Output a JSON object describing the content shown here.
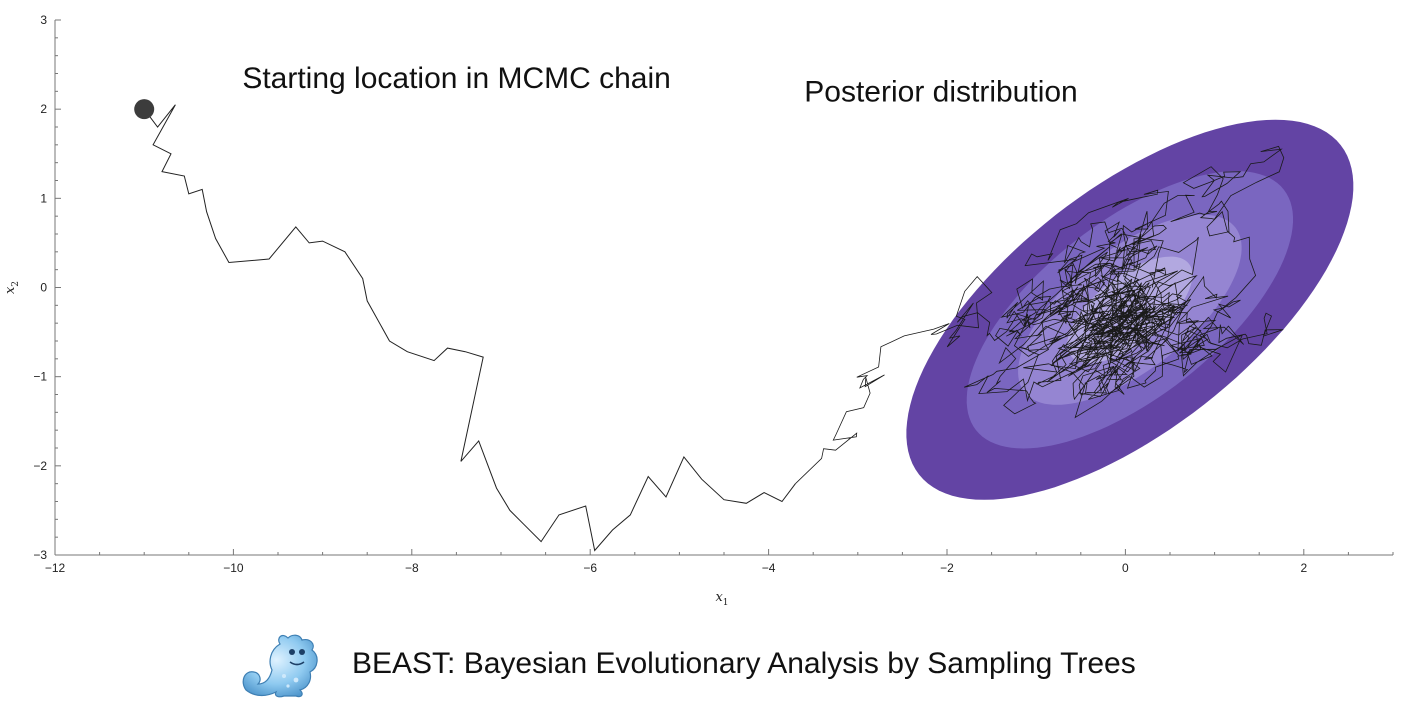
{
  "chart_data": {
    "type": "line",
    "title": "",
    "xlabel": "x",
    "xlabel_sub": "1",
    "ylabel": "x",
    "ylabel_sub": "2",
    "xlim": [
      -12,
      3
    ],
    "ylim": [
      -3,
      3
    ],
    "x_ticks": [
      -12,
      -10,
      -8,
      -6,
      -4,
      -2,
      0,
      2
    ],
    "x_tick_labels": [
      "−12",
      "−10",
      "−8",
      "−6",
      "−4",
      "−2",
      "0",
      "2"
    ],
    "y_ticks": [
      -3,
      -2,
      -1,
      0,
      1,
      2,
      3
    ],
    "y_tick_labels": [
      "−3",
      "−2",
      "−1",
      "0",
      "1",
      "2",
      "3"
    ],
    "grid": false,
    "start_point": {
      "x": -11,
      "y": 2,
      "color": "#3c3c3c"
    },
    "burn_in_path": {
      "color": "#222222",
      "x": [
        -11,
        -10.85,
        -10.65,
        -10.9,
        -10.7,
        -10.8,
        -10.55,
        -10.5,
        -10.35,
        -10.3,
        -10.2,
        -10.05,
        -9.6,
        -9.3,
        -9.15,
        -9.0,
        -8.75,
        -8.55,
        -8.5,
        -8.25,
        -8.05,
        -7.75,
        -7.6,
        -7.4,
        -7.2,
        -7.45,
        -7.25,
        -7.05,
        -6.9,
        -6.75,
        -6.55,
        -6.35,
        -6.05,
        -5.95,
        -5.75,
        -5.55,
        -5.35,
        -5.15,
        -4.95,
        -4.75,
        -4.5,
        -4.25,
        -4.05,
        -3.85,
        -3.7
      ],
      "y": [
        2,
        1.8,
        2.05,
        1.6,
        1.5,
        1.3,
        1.25,
        1.05,
        1.1,
        0.85,
        0.55,
        0.28,
        0.32,
        0.68,
        0.5,
        0.52,
        0.4,
        0.1,
        -0.15,
        -0.6,
        -0.72,
        -0.82,
        -0.68,
        -0.72,
        -0.78,
        -1.95,
        -1.72,
        -2.25,
        -2.5,
        -2.65,
        -2.85,
        -2.55,
        -2.45,
        -2.95,
        -2.72,
        -2.55,
        -2.12,
        -2.35,
        -1.9,
        -2.15,
        -2.38,
        -2.42,
        -2.3,
        -2.4,
        -2.2
      ]
    },
    "posterior": {
      "center": {
        "x": 0.05,
        "y": -0.25
      },
      "semi_major": 3.0,
      "semi_minor": 1.35,
      "angle_deg": 38,
      "levels": [
        {
          "scale": 1.0,
          "color": "#6344a4"
        },
        {
          "scale": 0.73,
          "color": "#7a66c0"
        },
        {
          "scale": 0.5,
          "color": "#9585d2"
        },
        {
          "scale": 0.28,
          "color": "#b2a8e0"
        }
      ]
    },
    "sampling_cloud": {
      "color": "#1a1a1a",
      "steps": 1200
    },
    "annotations": [
      {
        "text": "Starting location in MCMC chain",
        "x": -9.9,
        "y": 2.35
      },
      {
        "text": "Posterior distribution",
        "x": -3.6,
        "y": 2.2
      }
    ]
  },
  "footer": {
    "logo_icon": "beast-mascot-icon",
    "text": "BEAST: Bayesian Evolutionary Analysis by Sampling Trees"
  }
}
